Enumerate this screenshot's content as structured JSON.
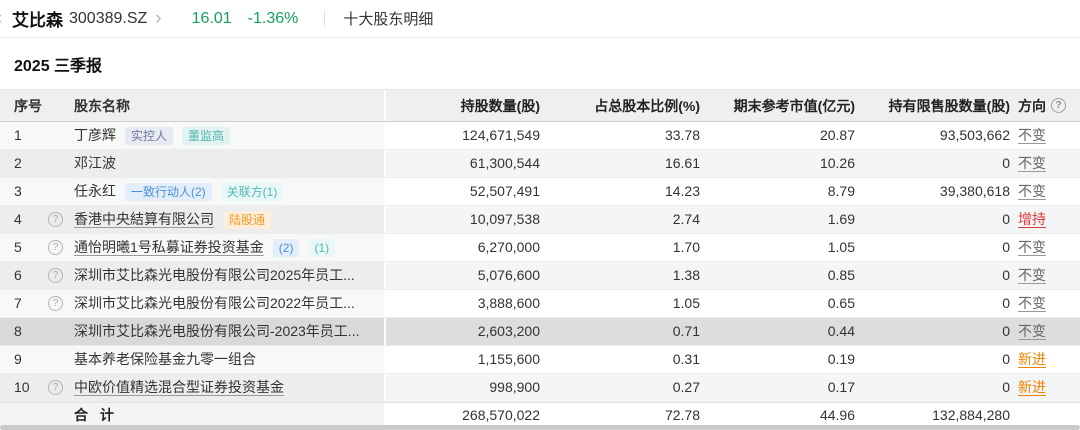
{
  "topbar": {
    "back_chevron": "‹",
    "stock_name": "艾比森",
    "stock_code": "300389.SZ",
    "forward_chevron": "›",
    "price": "16.01",
    "change_pct": "-1.36%",
    "page_title": "十大股东明细"
  },
  "section": {
    "title": "2025 三季报"
  },
  "table": {
    "headers": {
      "num": "序号",
      "name": "股东名称",
      "shares": "持股数量(股)",
      "pct": "占总股本比例(%)",
      "market_value": "期末参考市值(亿元)",
      "restricted": "持有限售股数量(股)",
      "direction": "方向"
    },
    "rows": [
      {
        "num": "1",
        "has_help": false,
        "name": "丁彦辉",
        "underline": false,
        "tags": [
          {
            "label": "实控人",
            "type": "purple"
          },
          {
            "label": "董监高",
            "type": "teal"
          }
        ],
        "shares": "124,671,549",
        "pct": "33.78",
        "market_value": "20.87",
        "restricted": "93,503,662",
        "direction": "不变",
        "direction_type": "flat",
        "highlight": false
      },
      {
        "num": "2",
        "has_help": false,
        "name": "邓江波",
        "underline": false,
        "tags": [],
        "shares": "61,300,544",
        "pct": "16.61",
        "market_value": "10.26",
        "restricted": "0",
        "direction": "不变",
        "direction_type": "flat",
        "highlight": false
      },
      {
        "num": "3",
        "has_help": false,
        "name": "任永红",
        "underline": false,
        "tags": [
          {
            "label": "一致行动人(2)",
            "type": "blue"
          },
          {
            "label": "关联方(1)",
            "type": "teal-light"
          }
        ],
        "shares": "52,507,491",
        "pct": "14.23",
        "market_value": "8.79",
        "restricted": "39,380,618",
        "direction": "不变",
        "direction_type": "flat",
        "highlight": false
      },
      {
        "num": "4",
        "has_help": true,
        "name": "香港中央結算有限公司",
        "underline": true,
        "tags": [
          {
            "label": "陆股通",
            "type": "orange"
          }
        ],
        "shares": "10,097,538",
        "pct": "2.74",
        "market_value": "1.69",
        "restricted": "0",
        "direction": "增持",
        "direction_type": "increase",
        "highlight": false
      },
      {
        "num": "5",
        "has_help": true,
        "name": "通怡明曦1号私募证券投资基金",
        "underline": true,
        "tags": [
          {
            "label": "(2)",
            "type": "blue"
          },
          {
            "label": "(1)",
            "type": "teal-light"
          }
        ],
        "shares": "6,270,000",
        "pct": "1.70",
        "market_value": "1.05",
        "restricted": "0",
        "direction": "不变",
        "direction_type": "flat",
        "highlight": false
      },
      {
        "num": "6",
        "has_help": true,
        "name": "深圳市艾比森光电股份有限公司2025年员工...",
        "underline": false,
        "tags": [],
        "shares": "5,076,600",
        "pct": "1.38",
        "market_value": "0.85",
        "restricted": "0",
        "direction": "不变",
        "direction_type": "flat",
        "highlight": false
      },
      {
        "num": "7",
        "has_help": true,
        "name": "深圳市艾比森光电股份有限公司2022年员工...",
        "underline": false,
        "tags": [],
        "shares": "3,888,600",
        "pct": "1.05",
        "market_value": "0.65",
        "restricted": "0",
        "direction": "不变",
        "direction_type": "flat",
        "highlight": false
      },
      {
        "num": "8",
        "has_help": false,
        "name": "深圳市艾比森光电股份有限公司-2023年员工...",
        "underline": false,
        "tags": [],
        "shares": "2,603,200",
        "pct": "0.71",
        "market_value": "0.44",
        "restricted": "0",
        "direction": "不变",
        "direction_type": "flat",
        "highlight": true
      },
      {
        "num": "9",
        "has_help": false,
        "name": "基本养老保险基金九零一组合",
        "underline": false,
        "tags": [],
        "shares": "1,155,600",
        "pct": "0.31",
        "market_value": "0.19",
        "restricted": "0",
        "direction": "新进",
        "direction_type": "new",
        "highlight": false
      },
      {
        "num": "10",
        "has_help": true,
        "name": "中欧价值精选混合型证券投资基金",
        "underline": true,
        "tags": [],
        "shares": "998,900",
        "pct": "0.27",
        "market_value": "0.17",
        "restricted": "0",
        "direction": "新进",
        "direction_type": "new",
        "highlight": false
      }
    ],
    "total": {
      "label": "合 计",
      "shares": "268,570,022",
      "pct": "72.78",
      "market_value": "44.96",
      "restricted": "132,884,280"
    }
  },
  "colors": {
    "price_green": "#12a25a",
    "direction_flat": "#666666",
    "direction_increase": "#e23a3a",
    "direction_new": "#f08300",
    "tag_orange": "#f59a23",
    "tag_blue": "#4a90d9",
    "tag_teal": "#4db4ad",
    "tag_slate": "#6b7aa3",
    "row_highlight": "#dcddde"
  },
  "icons": {
    "help": "?"
  }
}
